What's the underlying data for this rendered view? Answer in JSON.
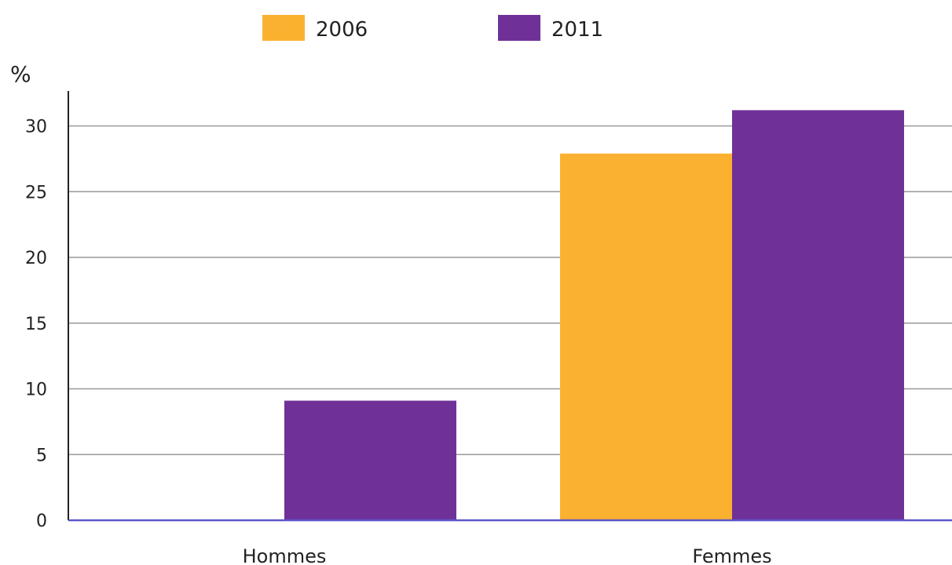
{
  "chart_data": {
    "type": "bar",
    "categories": [
      "Hommes",
      "Femmes"
    ],
    "series": [
      {
        "name": "2006",
        "values": [
          0,
          27.9
        ],
        "color": "#FBB130"
      },
      {
        "name": "2011",
        "values": [
          9.1,
          31.2
        ],
        "color": "#6F3197"
      }
    ],
    "ylabel": "%",
    "ylim": [
      0,
      32
    ],
    "yticks": [
      0,
      5,
      10,
      15,
      20,
      25,
      30
    ],
    "grid": true,
    "legend": "top-center",
    "colors": {
      "axis": "#222222",
      "baseline": "#5B57C8",
      "grid": "#999999"
    }
  }
}
